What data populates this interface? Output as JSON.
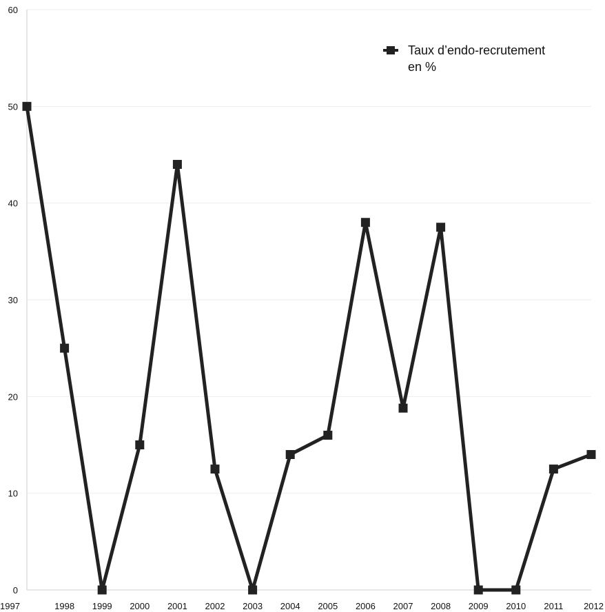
{
  "chart_data": {
    "type": "line",
    "title": "",
    "xlabel": "",
    "ylabel": "",
    "categories": [
      "1997",
      "1998",
      "1999",
      "2000",
      "2001",
      "2002",
      "2003",
      "2004",
      "2005",
      "2006",
      "2007",
      "2008",
      "2009",
      "2010",
      "2011",
      "2012"
    ],
    "series": [
      {
        "name": "Taux d’endo-recrutement en %",
        "legend_lines": [
          "Taux d’endo-recrutement",
          "en %"
        ],
        "values": [
          50,
          25,
          0,
          15,
          44,
          12.5,
          0,
          14,
          16,
          38,
          18.8,
          37.5,
          0,
          0,
          12.5,
          14
        ],
        "color": "#222222",
        "marker": "square"
      }
    ],
    "ylim": [
      0,
      60
    ],
    "yticks": [
      0,
      10,
      20,
      30,
      40,
      50,
      60
    ],
    "grid": true,
    "grid_color": "#eeeeee",
    "legend_position": "top-right"
  }
}
